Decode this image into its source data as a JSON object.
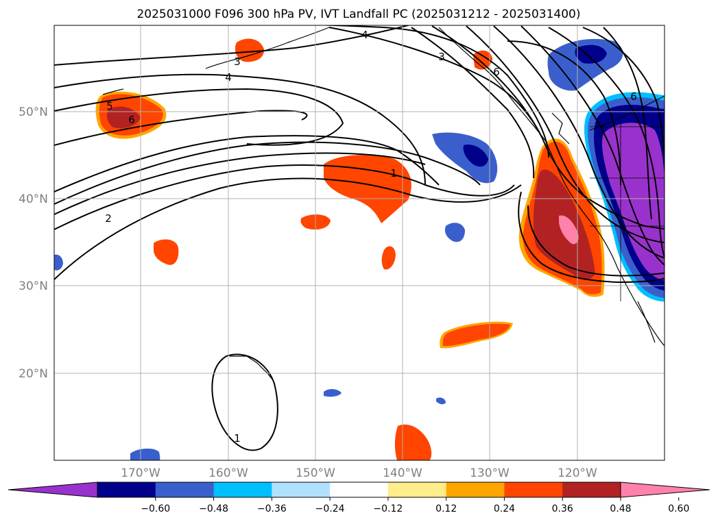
{
  "title": "2025031000 F096 300 hPa PV, IVT Landfall PC (2025031212 - 2025031400)",
  "map": {
    "lon_range": [
      -180,
      -110
    ],
    "lat_range": [
      10,
      60
    ],
    "lon_ticks": [
      "170°W",
      "160°W",
      "150°W",
      "140°W",
      "130°W",
      "120°W"
    ],
    "lat_ticks": [
      "50°N",
      "40°N",
      "30°N",
      "20°N"
    ],
    "gridlines": true
  },
  "colorbar": {
    "orientation": "horizontal",
    "extend": "both",
    "tick_labels": [
      "−0.60",
      "−0.48",
      "−0.36",
      "−0.24",
      "−0.12",
      "0.12",
      "0.24",
      "0.36",
      "0.48",
      "0.60"
    ],
    "colors": [
      "#9932cc",
      "#00008b",
      "#3a5fcd",
      "#00bfff",
      "#b0e2ff",
      "#ffffff",
      "#ffec8b",
      "#ffa500",
      "#ff4500",
      "#b22222",
      "#ff82ab"
    ]
  },
  "contour_labels": {
    "l4a": "4",
    "l4b": "4",
    "l3a": "3",
    "l3b": "3",
    "l5": "5",
    "l6a": "6",
    "l6b": "6",
    "l6c": "6",
    "l2": "2",
    "l1a": "1",
    "l1b": "1"
  }
}
